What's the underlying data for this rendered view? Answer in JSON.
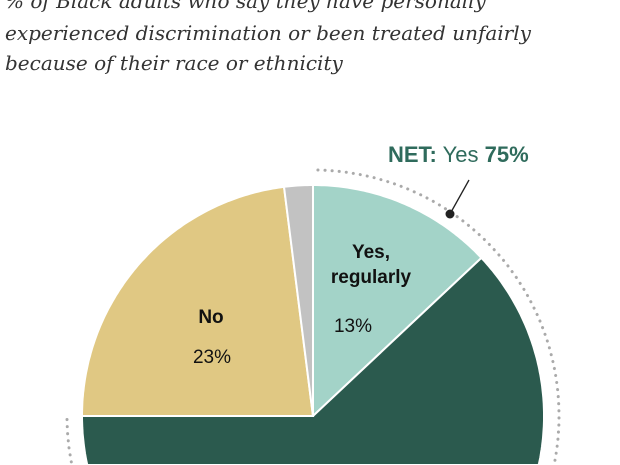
{
  "chart_data": {
    "type": "pie",
    "subtitle_lines": [
      "% of Black adults who say they have personally",
      "experienced discrimination or been treated unfairly",
      "because of their race or ethnicity"
    ],
    "slices": [
      {
        "label": "Yes, regularly",
        "label_lines": [
          "Yes,",
          "regularly"
        ],
        "value": 13,
        "value_label": "13%",
        "color": "#a3d3c8"
      },
      {
        "label": "",
        "value": 62,
        "color": "#2b5a4e"
      },
      {
        "label": "No",
        "label_lines": [
          "No"
        ],
        "value": 23,
        "value_label": "23%",
        "color": "#e0c883"
      },
      {
        "label": "",
        "value": 2,
        "color": "#c2c2c2"
      }
    ],
    "net_annotation": {
      "prefix": "NET:",
      "text": "Yes",
      "value": "75%",
      "color": "#2f6b5c"
    }
  }
}
